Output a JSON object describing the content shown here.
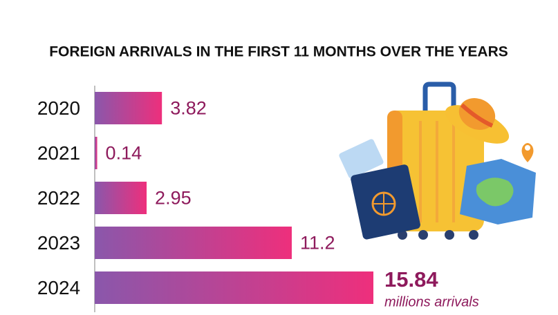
{
  "chart_data": {
    "type": "bar",
    "orientation": "horizontal",
    "title": "FOREIGN ARRIVALS IN THE FIRST 11 MONTHS OVER THE YEARS",
    "categories": [
      "2020",
      "2021",
      "2022",
      "2023",
      "2024"
    ],
    "values": [
      3.82,
      0.14,
      2.95,
      11.2,
      15.84
    ],
    "annotation": "millions arrivals",
    "color": [
      "#8a57ab",
      "#ee2f7c"
    ],
    "label_color": "#8e1a5c"
  }
}
